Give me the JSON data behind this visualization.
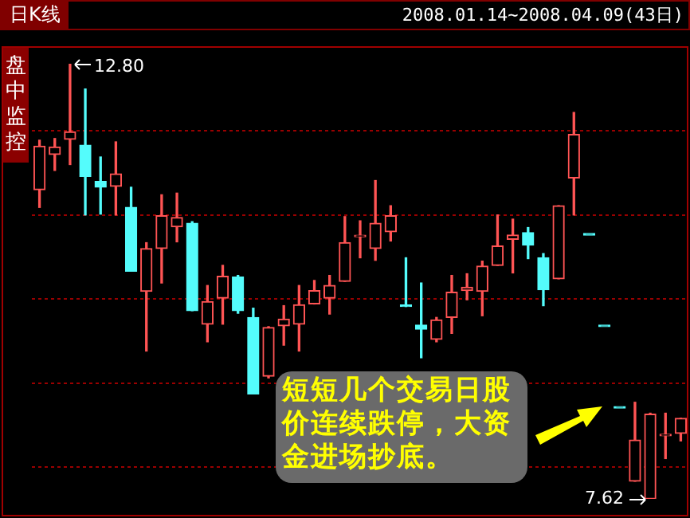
{
  "chart_data": {
    "type": "candlestick",
    "title": "日K线",
    "subtitle": "2008.01.14~2008.04.09(43日)",
    "categories": [
      null,
      null,
      null,
      null,
      null,
      null,
      null,
      null,
      null,
      null,
      null,
      null,
      null,
      null,
      null,
      null,
      null,
      null,
      null,
      null,
      null,
      null,
      null,
      null,
      null,
      null,
      null,
      null,
      null,
      null,
      null,
      null,
      null,
      null,
      null,
      null,
      null,
      null,
      null,
      null,
      null,
      null,
      null
    ],
    "ohlc": [
      [
        11.3,
        11.89,
        11.09,
        11.82
      ],
      [
        11.72,
        11.91,
        11.53,
        11.81
      ],
      [
        11.9,
        12.8,
        11.6,
        11.99
      ],
      [
        11.83,
        12.5,
        11.0,
        11.46
      ],
      [
        11.4,
        11.69,
        11.01,
        11.33
      ],
      [
        11.34,
        11.87,
        11.0,
        11.49
      ],
      [
        11.09,
        11.33,
        10.33,
        10.33
      ],
      [
        10.09,
        10.67,
        9.38,
        10.6
      ],
      [
        10.6,
        11.24,
        10.19,
        10.99
      ],
      [
        10.86,
        11.26,
        10.68,
        10.97
      ],
      [
        10.9,
        10.92,
        9.86,
        9.86
      ],
      [
        9.7,
        10.16,
        9.49,
        9.97
      ],
      [
        10.01,
        10.4,
        9.7,
        10.27
      ],
      [
        10.26,
        10.28,
        9.83,
        9.86
      ],
      [
        9.78,
        9.89,
        8.87,
        8.87
      ],
      [
        9.08,
        9.67,
        9.06,
        9.66
      ],
      [
        9.68,
        9.92,
        9.45,
        9.76
      ],
      [
        9.7,
        10.16,
        9.38,
        9.93
      ],
      [
        9.94,
        10.22,
        9.94,
        10.1
      ],
      [
        10.01,
        10.28,
        9.82,
        10.16
      ],
      [
        10.21,
        10.98,
        10.21,
        10.67
      ],
      [
        10.74,
        10.93,
        10.49,
        10.75
      ],
      [
        10.6,
        11.41,
        10.46,
        10.9
      ],
      [
        10.8,
        11.11,
        10.69,
        10.99
      ],
      [
        9.92,
        10.49,
        9.91,
        9.91
      ],
      [
        9.69,
        10.19,
        9.3,
        9.64
      ],
      [
        9.52,
        9.78,
        9.49,
        9.75
      ],
      [
        9.78,
        10.28,
        9.59,
        10.08
      ],
      [
        10.1,
        10.3,
        9.99,
        10.14
      ],
      [
        10.09,
        10.45,
        9.8,
        10.39
      ],
      [
        10.4,
        11.0,
        10.4,
        10.63
      ],
      [
        10.71,
        10.95,
        10.31,
        10.76
      ],
      [
        10.79,
        10.85,
        10.48,
        10.64
      ],
      [
        10.49,
        10.54,
        9.92,
        10.11
      ],
      [
        10.24,
        11.11,
        10.24,
        11.11
      ],
      [
        11.44,
        12.22,
        11.0,
        11.96
      ],
      [
        10.76,
        10.76,
        10.76,
        10.76
      ],
      [
        9.67,
        9.67,
        9.67,
        9.67
      ],
      [
        8.7,
        8.7,
        8.7,
        8.7
      ],
      [
        7.83,
        8.77,
        7.83,
        8.32
      ],
      [
        7.62,
        8.64,
        7.62,
        8.63
      ],
      [
        8.37,
        8.64,
        8.1,
        8.38
      ],
      [
        8.4,
        8.58,
        8.31,
        8.58
      ]
    ],
    "colors": [
      "#ff5454",
      "#ff5454",
      "#ff5454",
      "#54fcfc",
      "#54fcfc",
      "#ff5454",
      "#54fcfc",
      "#ff5454",
      "#ff5454",
      "#ff5454",
      "#54fcfc",
      "#ff5454",
      "#ff5454",
      "#54fcfc",
      "#54fcfc",
      "#ff5454",
      "#ff5454",
      "#ff5454",
      "#ff5454",
      "#ff5454",
      "#ff5454",
      "#ff5454",
      "#ff5454",
      "#ff5454",
      "#54fcfc",
      "#54fcfc",
      "#ff5454",
      "#ff5454",
      "#ff5454",
      "#ff5454",
      "#ff5454",
      "#ff5454",
      "#54fcfc",
      "#54fcfc",
      "#ff5454",
      "#ff5454",
      "#54fcfc",
      "#54fcfc",
      "#54fcfc",
      "#ff5454",
      "#ff5454",
      "#ff5454",
      "#ff5454"
    ],
    "yticks": [
      {
        "value": 12,
        "label": null
      },
      {
        "value": 11,
        "label": null
      },
      {
        "value": 10,
        "label": null
      },
      {
        "value": 9,
        "label": null
      },
      {
        "value": 8,
        "label": null
      }
    ],
    "grid": "y",
    "annotations": [
      "盘中监控",
      "12.80",
      "7.62",
      "短短几个交易日股价连续跌停，大资金进场抄底。"
    ]
  }
}
